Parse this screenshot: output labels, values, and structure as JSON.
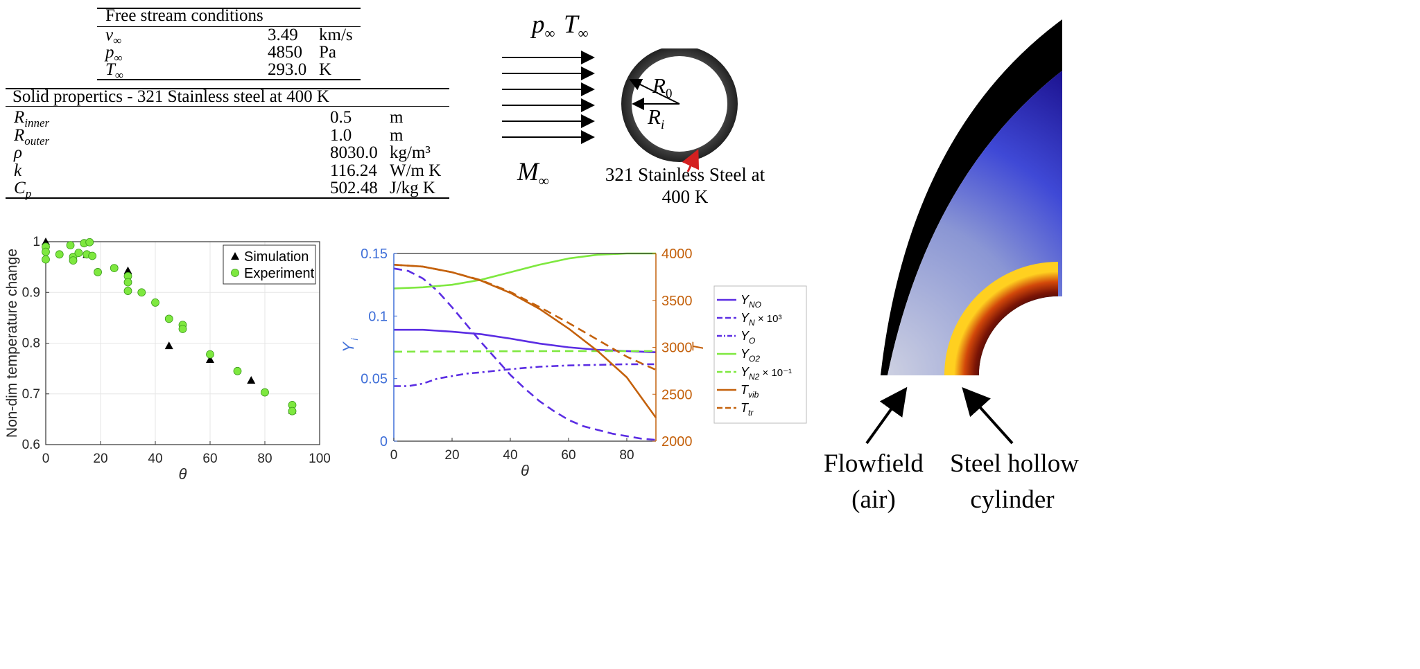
{
  "free_stream_table": {
    "title": "Free stream conditions",
    "rows": [
      {
        "symbol": "v",
        "sub": "∞",
        "value": "3.49",
        "unit": "km/s"
      },
      {
        "symbol": "p",
        "sub": "∞",
        "value": "4850",
        "unit": "Pa"
      },
      {
        "symbol": "T",
        "sub": "∞",
        "value": "293.0",
        "unit": "K"
      }
    ]
  },
  "solid_table": {
    "title": "Solid propertics - 321 Stainless steel at 400 K",
    "rows": [
      {
        "symbol": "R",
        "sub": "inner",
        "value": "0.5",
        "unit": "m"
      },
      {
        "symbol": "R",
        "sub": "outer",
        "value": "1.0",
        "unit": "m"
      },
      {
        "symbol": "ρ",
        "sub": "",
        "value": "8030.0",
        "unit": "kg/m³"
      },
      {
        "symbol": "k",
        "sub": "",
        "value": "116.24",
        "unit": "W/m K"
      },
      {
        "symbol": "C",
        "sub": "p",
        "value": "502.48",
        "unit": "J/kg K"
      }
    ]
  },
  "schematic": {
    "p_label": "p",
    "T_label": "T",
    "inf_sub": "∞",
    "M_label": "M",
    "R0_label": "R",
    "R0_sub": "0",
    "Ri_label": "R",
    "Ri_sub": "i",
    "material_line1": "321 Stainless Steel at",
    "material_line2": "400 K",
    "colors": {
      "arrow": "#000000",
      "ring": "#444444",
      "pointer": "#d42020"
    }
  },
  "contour": {
    "caption_left": [
      "Flowfield",
      "(air)"
    ],
    "caption_right": [
      "Steel hollow",
      "cylinder"
    ],
    "colors": {
      "shock": "#000000",
      "flow_outer": "#1a0f8c",
      "flow_inner": "#bcc3dd",
      "solid_hot": "#ffd020",
      "solid_cold": "#1a0a0a"
    }
  },
  "chart_data": [
    {
      "type": "scatter",
      "xlabel": "θ",
      "ylabel": "Non-dim temperature change",
      "xlim": [
        0,
        100
      ],
      "ylim": [
        0.6,
        1.0
      ],
      "xticks": [
        "0",
        "20",
        "40",
        "60",
        "80",
        "100"
      ],
      "yticks": [
        "0.6",
        "0.7",
        "0.8",
        "0.9",
        "1"
      ],
      "grid": true,
      "legend_position": "top-right",
      "series": [
        {
          "name": "Simulation",
          "marker": "triangle",
          "color": "#000000",
          "points": [
            [
              0,
              1.0
            ],
            [
              15,
              0.975
            ],
            [
              30,
              0.943
            ],
            [
              45,
              0.795
            ],
            [
              60,
              0.768
            ],
            [
              75,
              0.727
            ],
            [
              90,
              0.668
            ]
          ]
        },
        {
          "name": "Experiment",
          "marker": "circle",
          "color": "#7ee83f",
          "points": [
            [
              0,
              0.99
            ],
            [
              0,
              0.98
            ],
            [
              0,
              0.965
            ],
            [
              5,
              0.975
            ],
            [
              9,
              0.993
            ],
            [
              10,
              0.97
            ],
            [
              10,
              0.963
            ],
            [
              12,
              0.978
            ],
            [
              14,
              0.997
            ],
            [
              15,
              0.975
            ],
            [
              16,
              0.999
            ],
            [
              17,
              0.972
            ],
            [
              19,
              0.94
            ],
            [
              25,
              0.948
            ],
            [
              30,
              0.932
            ],
            [
              30,
              0.92
            ],
            [
              30,
              0.903
            ],
            [
              35,
              0.9
            ],
            [
              40,
              0.88
            ],
            [
              45,
              0.848
            ],
            [
              50,
              0.836
            ],
            [
              50,
              0.828
            ],
            [
              60,
              0.778
            ],
            [
              70,
              0.745
            ],
            [
              80,
              0.703
            ],
            [
              90,
              0.678
            ],
            [
              90,
              0.666
            ]
          ]
        }
      ]
    },
    {
      "type": "line",
      "xlabel": "θ",
      "ylabel_left": "Y",
      "ylabel_left_sub": "i",
      "ylabel_right": "T",
      "xlim": [
        0,
        90
      ],
      "ylim_left": [
        0,
        0.15
      ],
      "ylim_right": [
        2000,
        4000
      ],
      "xticks": [
        "0",
        "20",
        "40",
        "60",
        "80"
      ],
      "yticks_left": [
        "0",
        "0.05",
        "0.1",
        "0.15"
      ],
      "yticks_right": [
        "2000",
        "2500",
        "3000",
        "3500",
        "4000"
      ],
      "legend_position": "outside-right",
      "colors": {
        "left_axis": "#3f6fd8",
        "right_axis": "#c4610c"
      },
      "series": [
        {
          "name": "Y",
          "sub": "NO",
          "extra": "",
          "axis": "left",
          "color": "#5b2de3",
          "dash": "solid",
          "x": [
            0,
            10,
            20,
            30,
            40,
            50,
            60,
            70,
            80,
            90
          ],
          "y": [
            0.089,
            0.089,
            0.0875,
            0.0855,
            0.082,
            0.078,
            0.075,
            0.073,
            0.072,
            0.071
          ]
        },
        {
          "name": "Y",
          "sub": "N",
          "extra": " × 10³",
          "axis": "left",
          "color": "#5b2de3",
          "dash": "dash",
          "x": [
            0,
            5,
            10,
            15,
            20,
            25,
            30,
            35,
            40,
            45,
            50,
            55,
            60,
            65,
            70,
            75,
            80,
            85,
            90
          ],
          "y": [
            0.138,
            0.136,
            0.13,
            0.12,
            0.107,
            0.093,
            0.079,
            0.066,
            0.053,
            0.042,
            0.032,
            0.024,
            0.017,
            0.012,
            0.009,
            0.006,
            0.004,
            0.002,
            0.001
          ]
        },
        {
          "name": "Y",
          "sub": "O",
          "extra": "",
          "axis": "left",
          "color": "#5b2de3",
          "dash": "dashdot",
          "x": [
            0,
            5,
            10,
            15,
            20,
            25,
            30,
            40,
            50,
            60,
            70,
            80,
            90
          ],
          "y": [
            0.044,
            0.044,
            0.046,
            0.05,
            0.052,
            0.054,
            0.055,
            0.0575,
            0.0595,
            0.0605,
            0.061,
            0.0615,
            0.0615
          ]
        },
        {
          "name": "Y",
          "sub": "O2",
          "extra": "",
          "axis": "left",
          "color": "#7ee83f",
          "dash": "solid",
          "x": [
            0,
            10,
            20,
            30,
            40,
            50,
            60,
            70,
            80,
            90
          ],
          "y": [
            0.122,
            0.123,
            0.125,
            0.129,
            0.135,
            0.141,
            0.146,
            0.149,
            0.15,
            0.15
          ]
        },
        {
          "name": "Y",
          "sub": "N2",
          "extra": " × 10⁻¹",
          "axis": "left",
          "color": "#7ee83f",
          "dash": "dash",
          "x": [
            0,
            30,
            60,
            90
          ],
          "y": [
            0.0715,
            0.0718,
            0.072,
            0.072
          ]
        },
        {
          "name": "T",
          "sub": "vib",
          "extra": "",
          "axis": "right",
          "color": "#c4610c",
          "dash": "solid",
          "x": [
            0,
            10,
            20,
            30,
            40,
            50,
            60,
            70,
            80,
            90
          ],
          "y": [
            3880,
            3860,
            3800,
            3710,
            3580,
            3410,
            3200,
            2960,
            2680,
            2250
          ]
        },
        {
          "name": "T",
          "sub": "tr",
          "extra": "",
          "axis": "right",
          "color": "#c4610c",
          "dash": "dash",
          "x": [
            0,
            10,
            20,
            30,
            40,
            50,
            60,
            70,
            80,
            90
          ],
          "y": [
            3880,
            3860,
            3800,
            3715,
            3590,
            3430,
            3260,
            3080,
            2900,
            2760
          ]
        }
      ]
    }
  ]
}
